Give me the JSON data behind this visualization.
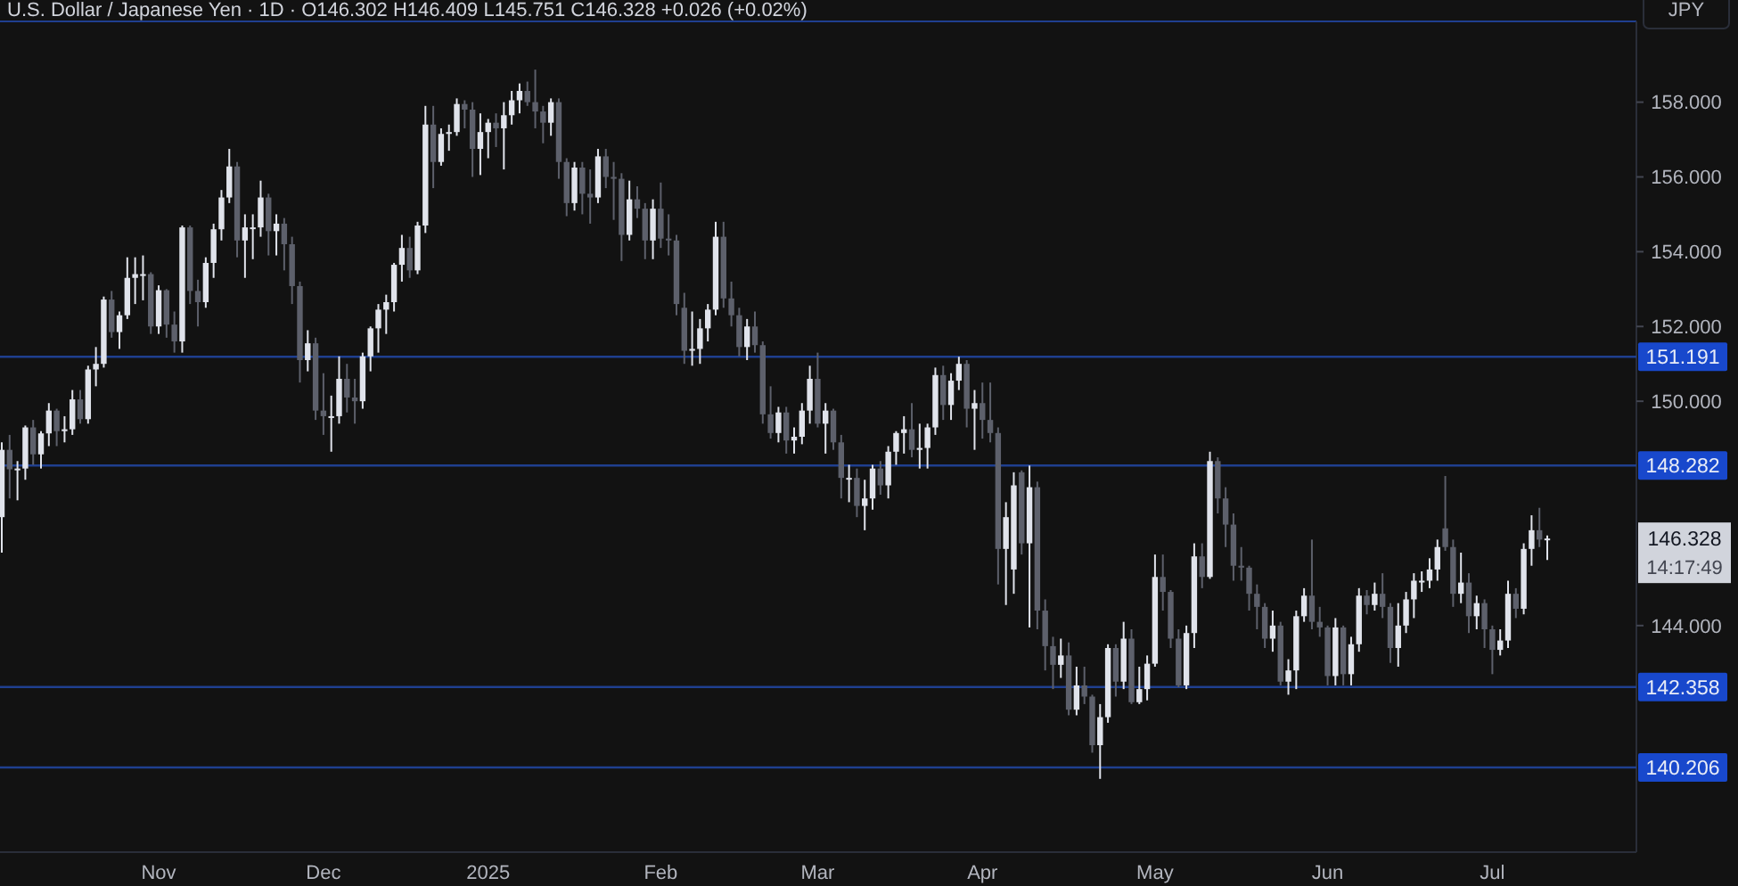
{
  "chart_data": {
    "type": "candlestick",
    "title": "U.S. Dollar / Japanese Yen · 1D · O146.302 H146.409 L145.751 C146.328 +0.026 (+0.02%)",
    "ylabel": "JPY",
    "categories": [
      null,
      null,
      null,
      null,
      null,
      null,
      null,
      null,
      null,
      null,
      null,
      null,
      null,
      null,
      null,
      null,
      null,
      null,
      null,
      null,
      "Nov",
      null,
      null,
      null,
      null,
      null,
      null,
      null,
      null,
      null,
      null,
      null,
      null,
      null,
      null,
      null,
      null,
      null,
      null,
      null,
      null,
      "Dec",
      null,
      null,
      null,
      null,
      null,
      null,
      null,
      null,
      null,
      null,
      null,
      null,
      null,
      null,
      null,
      null,
      null,
      null,
      null,
      null,
      "2025",
      null,
      null,
      null,
      null,
      null,
      null,
      null,
      null,
      null,
      null,
      null,
      null,
      null,
      null,
      null,
      null,
      null,
      null,
      null,
      null,
      null,
      "Feb",
      null,
      null,
      null,
      null,
      null,
      null,
      null,
      null,
      null,
      null,
      null,
      null,
      null,
      null,
      null,
      null,
      null,
      null,
      null,
      "Mar",
      null,
      null,
      null,
      null,
      null,
      null,
      null,
      null,
      null,
      null,
      null,
      null,
      null,
      null,
      null,
      null,
      null,
      null,
      null,
      null,
      "Apr",
      null,
      null,
      null,
      null,
      null,
      null,
      null,
      null,
      null,
      null,
      null,
      null,
      null,
      null,
      null,
      null,
      null,
      null,
      null,
      null,
      null,
      "May",
      null,
      null,
      null,
      null,
      null,
      null,
      null,
      null,
      null,
      null,
      null,
      null,
      null,
      null,
      null,
      null,
      null,
      null,
      null,
      null,
      null,
      "Jun",
      null,
      null,
      null,
      null,
      null,
      null,
      null,
      null,
      null,
      null,
      null,
      null,
      null,
      null,
      null,
      null,
      null,
      null,
      null,
      null,
      "Jul",
      null,
      null,
      null,
      null,
      null,
      null,
      null
    ],
    "ohlc": [
      [
        146.9,
        148.9,
        145.95,
        148.7
      ],
      [
        148.7,
        149.1,
        147.4,
        148.18
      ],
      [
        148.18,
        148.4,
        147.35,
        148.2
      ],
      [
        148.2,
        149.35,
        147.9,
        149.3
      ],
      [
        149.3,
        149.5,
        148.3,
        148.58
      ],
      [
        148.58,
        149.2,
        148.2,
        149.14
      ],
      [
        149.14,
        149.95,
        148.8,
        149.75
      ],
      [
        149.75,
        149.8,
        148.8,
        149.2
      ],
      [
        149.2,
        149.6,
        148.9,
        149.25
      ],
      [
        149.25,
        150.3,
        149.1,
        150.05
      ],
      [
        150.05,
        150.3,
        149.4,
        149.52
      ],
      [
        149.52,
        150.95,
        149.4,
        150.85
      ],
      [
        150.85,
        151.45,
        150.4,
        151.0
      ],
      [
        151.0,
        152.8,
        150.9,
        152.72
      ],
      [
        152.72,
        152.95,
        151.7,
        151.85
      ],
      [
        151.85,
        152.4,
        151.4,
        152.3
      ],
      [
        152.3,
        153.85,
        152.2,
        153.3
      ],
      [
        153.3,
        153.85,
        152.6,
        153.4
      ],
      [
        153.4,
        153.9,
        152.7,
        153.4
      ],
      [
        153.4,
        153.45,
        151.8,
        152.0
      ],
      [
        152.0,
        153.1,
        151.8,
        152.97
      ],
      [
        152.97,
        153.0,
        151.7,
        152.05
      ],
      [
        152.05,
        152.4,
        151.3,
        151.6
      ],
      [
        151.6,
        154.7,
        151.3,
        154.65
      ],
      [
        154.65,
        154.7,
        152.6,
        152.95
      ],
      [
        152.95,
        153.25,
        152.0,
        152.65
      ],
      [
        152.65,
        153.85,
        152.5,
        153.7
      ],
      [
        153.7,
        154.75,
        153.3,
        154.6
      ],
      [
        154.6,
        155.65,
        154.3,
        155.45
      ],
      [
        155.45,
        156.75,
        155.3,
        156.28
      ],
      [
        156.28,
        156.4,
        153.85,
        154.3
      ],
      [
        154.3,
        155.0,
        153.3,
        154.65
      ],
      [
        154.65,
        155.0,
        153.8,
        154.65
      ],
      [
        154.65,
        155.9,
        154.4,
        155.45
      ],
      [
        155.45,
        155.55,
        153.9,
        154.55
      ],
      [
        154.55,
        155.0,
        153.9,
        154.75
      ],
      [
        154.75,
        154.9,
        153.5,
        154.2
      ],
      [
        154.2,
        154.4,
        152.6,
        153.08
      ],
      [
        153.08,
        153.2,
        150.5,
        151.1
      ],
      [
        151.1,
        151.9,
        150.8,
        151.55
      ],
      [
        151.55,
        151.7,
        149.5,
        149.75
      ],
      [
        149.75,
        150.75,
        149.1,
        149.6
      ],
      [
        149.6,
        150.15,
        148.65,
        149.6
      ],
      [
        149.6,
        151.2,
        149.4,
        150.6
      ],
      [
        150.6,
        151.0,
        149.7,
        150.1
      ],
      [
        150.1,
        150.6,
        149.4,
        150.0
      ],
      [
        150.0,
        151.3,
        149.8,
        151.2
      ],
      [
        151.2,
        152.0,
        150.8,
        151.95
      ],
      [
        151.95,
        152.6,
        151.3,
        152.45
      ],
      [
        152.45,
        152.85,
        151.8,
        152.65
      ],
      [
        152.65,
        153.7,
        152.4,
        153.65
      ],
      [
        153.65,
        154.45,
        153.2,
        154.1
      ],
      [
        154.1,
        154.4,
        153.3,
        153.5
      ],
      [
        153.5,
        154.8,
        153.4,
        154.7
      ],
      [
        154.7,
        157.9,
        154.5,
        157.4
      ],
      [
        157.4,
        157.9,
        155.7,
        156.4
      ],
      [
        156.4,
        157.3,
        156.3,
        157.15
      ],
      [
        157.15,
        157.4,
        156.7,
        157.2
      ],
      [
        157.2,
        158.1,
        157.1,
        157.95
      ],
      [
        157.95,
        158.05,
        157.3,
        157.8
      ],
      [
        157.8,
        158.0,
        156.0,
        156.75
      ],
      [
        156.75,
        157.7,
        156.05,
        157.2
      ],
      [
        157.2,
        157.55,
        156.5,
        157.45
      ],
      [
        157.45,
        157.7,
        156.8,
        157.3
      ],
      [
        157.3,
        158.0,
        156.2,
        157.65
      ],
      [
        157.65,
        158.3,
        157.4,
        158.05
      ],
      [
        158.05,
        158.5,
        157.7,
        158.3
      ],
      [
        158.3,
        158.55,
        157.9,
        158.0
      ],
      [
        158.0,
        158.87,
        157.3,
        157.75
      ],
      [
        157.75,
        157.9,
        156.9,
        157.45
      ],
      [
        157.45,
        158.1,
        157.1,
        158.0
      ],
      [
        158.0,
        158.1,
        155.95,
        156.4
      ],
      [
        156.4,
        156.5,
        154.95,
        155.3
      ],
      [
        155.3,
        156.4,
        155.1,
        156.25
      ],
      [
        156.25,
        156.4,
        155.0,
        155.55
      ],
      [
        155.55,
        156.2,
        154.75,
        155.45
      ],
      [
        155.45,
        156.75,
        155.3,
        156.55
      ],
      [
        156.55,
        156.75,
        155.7,
        156.0
      ],
      [
        156.0,
        156.4,
        154.85,
        155.95
      ],
      [
        155.95,
        156.1,
        153.75,
        154.45
      ],
      [
        154.45,
        155.9,
        154.3,
        155.4
      ],
      [
        155.4,
        155.75,
        154.9,
        155.15
      ],
      [
        155.15,
        155.3,
        153.8,
        154.3
      ],
      [
        154.3,
        155.4,
        153.8,
        155.15
      ],
      [
        155.15,
        155.85,
        154.1,
        154.35
      ],
      [
        154.35,
        155.0,
        153.9,
        154.3
      ],
      [
        154.3,
        154.45,
        152.3,
        152.6
      ],
      [
        152.5,
        152.9,
        151.0,
        151.35
      ],
      [
        151.35,
        152.4,
        150.95,
        151.4
      ],
      [
        151.4,
        152.2,
        151.0,
        151.95
      ],
      [
        151.95,
        152.6,
        151.6,
        152.45
      ],
      [
        152.45,
        154.8,
        152.3,
        154.4
      ],
      [
        154.4,
        154.8,
        152.5,
        152.75
      ],
      [
        152.75,
        153.2,
        152.0,
        152.3
      ],
      [
        152.3,
        152.5,
        151.2,
        151.45
      ],
      [
        151.45,
        152.2,
        151.1,
        152.0
      ],
      [
        152.0,
        152.4,
        151.3,
        151.5
      ],
      [
        151.5,
        151.6,
        149.4,
        149.65
      ],
      [
        149.65,
        150.4,
        149.0,
        149.15
      ],
      [
        149.15,
        149.85,
        148.9,
        149.7
      ],
      [
        149.7,
        149.85,
        148.6,
        148.95
      ],
      [
        148.95,
        149.3,
        148.6,
        149.05
      ],
      [
        149.05,
        149.95,
        148.85,
        149.75
      ],
      [
        149.75,
        150.95,
        149.4,
        150.6
      ],
      [
        150.6,
        151.3,
        149.3,
        149.4
      ],
      [
        149.4,
        149.95,
        148.6,
        149.75
      ],
      [
        149.75,
        149.8,
        148.7,
        148.9
      ],
      [
        148.9,
        149.1,
        147.4,
        147.95
      ],
      [
        147.95,
        148.3,
        147.3,
        147.95
      ],
      [
        147.95,
        148.2,
        146.9,
        147.2
      ],
      [
        147.2,
        147.9,
        146.55,
        147.4
      ],
      [
        147.4,
        148.3,
        147.1,
        148.2
      ],
      [
        148.2,
        148.4,
        147.5,
        147.75
      ],
      [
        147.75,
        148.8,
        147.4,
        148.65
      ],
      [
        148.65,
        149.2,
        148.3,
        149.15
      ],
      [
        149.15,
        149.6,
        148.6,
        149.25
      ],
      [
        149.25,
        149.95,
        148.5,
        148.7
      ],
      [
        148.7,
        149.4,
        148.2,
        148.75
      ],
      [
        148.75,
        149.4,
        148.2,
        149.3
      ],
      [
        149.3,
        150.9,
        149.1,
        150.7
      ],
      [
        150.7,
        150.95,
        149.5,
        149.9
      ],
      [
        149.9,
        150.75,
        149.5,
        150.55
      ],
      [
        150.55,
        151.19,
        150.3,
        151.0
      ],
      [
        151.0,
        151.1,
        149.3,
        149.8
      ],
      [
        149.8,
        150.3,
        148.7,
        149.95
      ],
      [
        149.95,
        150.5,
        149.0,
        149.5
      ],
      [
        149.5,
        150.5,
        148.9,
        149.15
      ],
      [
        149.15,
        149.3,
        145.1,
        146.05
      ],
      [
        146.05,
        147.3,
        144.55,
        146.9
      ],
      [
        145.5,
        148.1,
        144.85,
        147.75
      ],
      [
        148.1,
        148.15,
        145.9,
        146.2
      ],
      [
        146.2,
        148.28,
        143.95,
        147.7
      ],
      [
        147.7,
        147.85,
        143.9,
        144.4
      ],
      [
        144.4,
        144.7,
        142.8,
        143.45
      ],
      [
        143.45,
        143.7,
        142.3,
        142.95
      ],
      [
        142.95,
        143.65,
        142.6,
        143.2
      ],
      [
        143.2,
        143.55,
        141.6,
        141.75
      ],
      [
        141.75,
        142.9,
        141.6,
        142.4
      ],
      [
        142.4,
        142.9,
        141.9,
        142.1
      ],
      [
        142.1,
        142.15,
        140.6,
        140.8
      ],
      [
        140.8,
        141.9,
        139.9,
        141.55
      ],
      [
        141.55,
        143.5,
        141.4,
        143.4
      ],
      [
        143.4,
        143.5,
        142.1,
        142.5
      ],
      [
        142.5,
        144.1,
        142.3,
        143.65
      ],
      [
        143.65,
        143.9,
        141.9,
        141.95
      ],
      [
        141.95,
        142.9,
        141.9,
        142.3
      ],
      [
        142.3,
        143.2,
        142.0,
        142.98
      ],
      [
        142.98,
        145.9,
        142.9,
        145.3
      ],
      [
        145.3,
        145.9,
        144.4,
        144.9
      ],
      [
        144.9,
        144.95,
        143.4,
        143.65
      ],
      [
        143.65,
        143.9,
        142.35,
        142.4
      ],
      [
        142.4,
        144.0,
        142.3,
        143.8
      ],
      [
        143.8,
        146.2,
        143.4,
        145.85
      ],
      [
        145.85,
        146.2,
        145.0,
        145.3
      ],
      [
        145.3,
        148.65,
        145.25,
        148.4
      ],
      [
        148.4,
        148.5,
        147.0,
        147.4
      ],
      [
        147.4,
        147.7,
        146.1,
        146.7
      ],
      [
        146.7,
        147.0,
        145.2,
        145.6
      ],
      [
        145.6,
        146.1,
        145.2,
        145.55
      ],
      [
        145.55,
        145.6,
        144.4,
        144.85
      ],
      [
        144.85,
        145.1,
        143.9,
        144.5
      ],
      [
        144.5,
        144.6,
        143.4,
        143.65
      ],
      [
        143.65,
        144.4,
        143.3,
        144.0
      ],
      [
        144.0,
        144.1,
        142.4,
        142.5
      ],
      [
        142.5,
        143.1,
        142.15,
        142.8
      ],
      [
        142.8,
        144.4,
        142.3,
        144.25
      ],
      [
        144.25,
        145.0,
        144.1,
        144.8
      ],
      [
        144.8,
        146.3,
        143.9,
        144.1
      ],
      [
        144.1,
        144.5,
        143.7,
        143.95
      ],
      [
        143.95,
        144.0,
        142.4,
        142.65
      ],
      [
        142.65,
        144.2,
        142.4,
        143.95
      ],
      [
        143.95,
        144.0,
        142.4,
        142.7
      ],
      [
        142.7,
        143.7,
        142.4,
        143.5
      ],
      [
        143.5,
        145.0,
        143.3,
        144.8
      ],
      [
        144.8,
        144.95,
        144.3,
        144.55
      ],
      [
        144.55,
        145.15,
        144.4,
        144.85
      ],
      [
        144.85,
        145.4,
        144.2,
        144.5
      ],
      [
        144.5,
        144.6,
        143.0,
        143.4
      ],
      [
        143.4,
        144.6,
        142.9,
        144.0
      ],
      [
        144.0,
        144.9,
        143.8,
        144.7
      ],
      [
        144.7,
        145.4,
        144.2,
        145.2
      ],
      [
        145.2,
        145.45,
        144.9,
        145.2
      ],
      [
        145.2,
        145.8,
        145.0,
        145.5
      ],
      [
        145.5,
        146.3,
        145.2,
        146.1
      ],
      [
        146.6,
        148.0,
        146.0,
        146.1
      ],
      [
        146.1,
        146.3,
        144.5,
        144.85
      ],
      [
        144.85,
        145.95,
        144.6,
        145.15
      ],
      [
        145.15,
        145.4,
        143.8,
        144.25
      ],
      [
        144.25,
        144.8,
        143.9,
        144.6
      ],
      [
        144.6,
        144.7,
        143.4,
        143.9
      ],
      [
        143.9,
        144.0,
        142.7,
        143.35
      ],
      [
        143.35,
        143.9,
        143.2,
        143.6
      ],
      [
        143.6,
        145.2,
        143.4,
        144.85
      ],
      [
        144.85,
        145.0,
        144.2,
        144.45
      ],
      [
        144.45,
        146.2,
        144.3,
        146.05
      ],
      [
        146.05,
        146.95,
        145.6,
        146.55
      ],
      [
        146.55,
        147.15,
        146.1,
        146.3
      ],
      [
        146.302,
        146.409,
        145.751,
        146.328
      ]
    ],
    "ylim": [
      137.94,
      160.16
    ],
    "yticks": [
      {
        "value": 144,
        "label": "144.000"
      },
      {
        "value": 150,
        "label": "150.000"
      },
      {
        "value": 152,
        "label": "152.000"
      },
      {
        "value": 154,
        "label": "154.000"
      },
      {
        "value": 156,
        "label": "156.000"
      },
      {
        "value": 158,
        "label": "158.000"
      }
    ],
    "ref_lines": [
      {
        "axis": "y",
        "value": 151.191,
        "label": "151.191",
        "color": "#1f3f8f"
      },
      {
        "axis": "y",
        "value": 148.282,
        "label": "148.282",
        "color": "#1f3f8f"
      },
      {
        "axis": "y",
        "value": 142.358,
        "label": "142.358",
        "color": "#1f3f8f"
      },
      {
        "axis": "y",
        "value": 140.206,
        "label": "140.206",
        "color": "#1f3f8f"
      }
    ],
    "annotations": [
      "146.328",
      "14:17:49"
    ]
  }
}
